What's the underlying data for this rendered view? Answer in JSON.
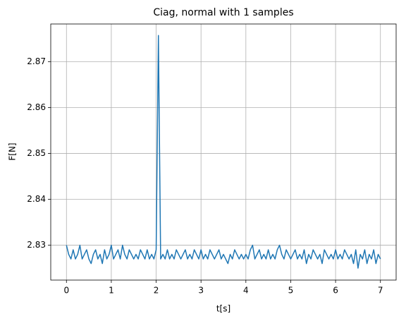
{
  "chart_data": {
    "type": "line",
    "title": "Ciag, normal with 1 samples",
    "xlabel": "t[s]",
    "ylabel": "F[N]",
    "grid": true,
    "x": [
      0,
      0.05,
      0.1,
      0.15,
      0.2,
      0.25,
      0.3,
      0.35,
      0.4,
      0.45,
      0.5,
      0.55,
      0.6,
      0.65,
      0.7,
      0.75,
      0.8,
      0.85,
      0.9,
      0.95,
      1,
      1.05,
      1.1,
      1.15,
      1.2,
      1.25,
      1.3,
      1.35,
      1.4,
      1.45,
      1.5,
      1.55,
      1.6,
      1.65,
      1.7,
      1.75,
      1.8,
      1.85,
      1.9,
      1.95,
      2,
      2.05,
      2.1,
      2.15,
      2.2,
      2.25,
      2.3,
      2.35,
      2.4,
      2.45,
      2.5,
      2.55,
      2.6,
      2.65,
      2.7,
      2.75,
      2.8,
      2.85,
      2.9,
      2.95,
      3,
      3.05,
      3.1,
      3.15,
      3.2,
      3.25,
      3.3,
      3.35,
      3.4,
      3.45,
      3.5,
      3.55,
      3.6,
      3.65,
      3.7,
      3.75,
      3.8,
      3.85,
      3.9,
      3.95,
      4,
      4.05,
      4.1,
      4.15,
      4.2,
      4.25,
      4.3,
      4.35,
      4.4,
      4.45,
      4.5,
      4.55,
      4.6,
      4.65,
      4.7,
      4.75,
      4.8,
      4.85,
      4.9,
      4.95,
      5,
      5.05,
      5.1,
      5.15,
      5.2,
      5.25,
      5.3,
      5.35,
      5.4,
      5.45,
      5.5,
      5.55,
      5.6,
      5.65,
      5.7,
      5.75,
      5.8,
      5.85,
      5.9,
      5.95,
      6,
      6.05,
      6.1,
      6.15,
      6.2,
      6.25,
      6.3,
      6.35,
      6.4,
      6.45,
      6.5,
      6.55,
      6.6,
      6.65,
      6.7,
      6.75,
      6.8,
      6.85,
      6.9,
      6.95,
      7
    ],
    "series": [
      {
        "color": "#1f77b4",
        "values": [
          2.83,
          2.828,
          2.827,
          2.829,
          2.827,
          2.828,
          2.83,
          2.827,
          2.828,
          2.829,
          2.827,
          2.826,
          2.828,
          2.829,
          2.827,
          2.828,
          2.826,
          2.829,
          2.827,
          2.828,
          2.83,
          2.827,
          2.828,
          2.829,
          2.827,
          2.83,
          2.828,
          2.827,
          2.829,
          2.828,
          2.827,
          2.828,
          2.827,
          2.829,
          2.828,
          2.827,
          2.829,
          2.827,
          2.828,
          2.827,
          2.829,
          2.8757,
          2.827,
          2.828,
          2.827,
          2.829,
          2.827,
          2.828,
          2.827,
          2.829,
          2.828,
          2.827,
          2.828,
          2.829,
          2.827,
          2.828,
          2.827,
          2.829,
          2.828,
          2.827,
          2.829,
          2.827,
          2.828,
          2.827,
          2.829,
          2.828,
          2.827,
          2.828,
          2.829,
          2.827,
          2.828,
          2.827,
          2.826,
          2.828,
          2.827,
          2.829,
          2.828,
          2.827,
          2.828,
          2.827,
          2.828,
          2.827,
          2.829,
          2.83,
          2.827,
          2.828,
          2.829,
          2.827,
          2.828,
          2.827,
          2.829,
          2.827,
          2.828,
          2.827,
          2.829,
          2.83,
          2.828,
          2.827,
          2.829,
          2.828,
          2.827,
          2.828,
          2.829,
          2.827,
          2.828,
          2.827,
          2.829,
          2.826,
          2.828,
          2.827,
          2.829,
          2.828,
          2.827,
          2.828,
          2.826,
          2.829,
          2.828,
          2.827,
          2.828,
          2.827,
          2.829,
          2.827,
          2.828,
          2.827,
          2.829,
          2.828,
          2.827,
          2.828,
          2.826,
          2.829,
          2.825,
          2.828,
          2.827,
          2.829,
          2.826,
          2.828,
          2.827,
          2.829,
          2.826,
          2.828,
          2.827
        ]
      }
    ],
    "xlim": [
      -0.35,
      7.35
    ],
    "xticks": [
      0,
      1,
      2,
      3,
      4,
      5,
      6,
      7
    ],
    "ylim": [
      2.8224,
      2.8782
    ],
    "yticks": [
      2.83,
      2.84,
      2.85,
      2.86,
      2.87
    ]
  }
}
